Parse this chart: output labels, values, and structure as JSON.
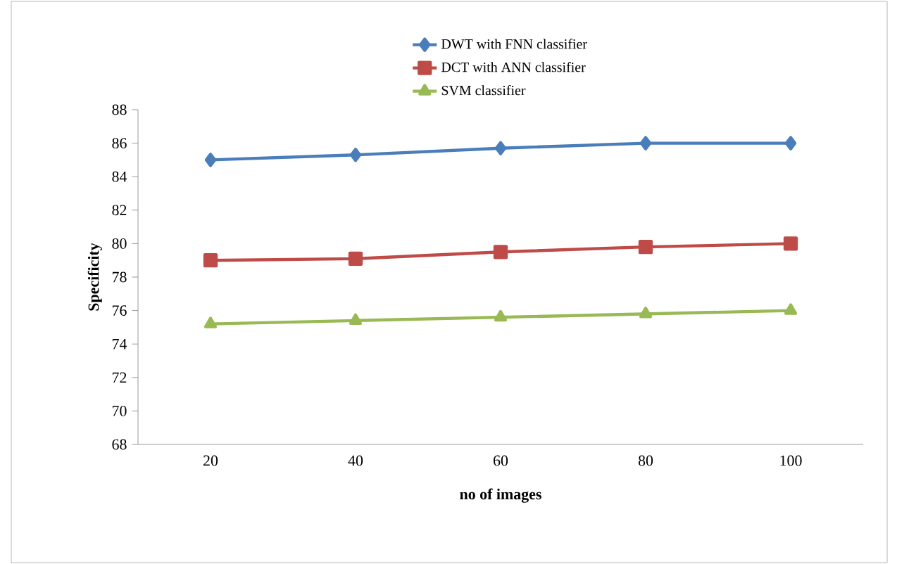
{
  "chart_data": {
    "type": "line",
    "xlabel": "no of images",
    "ylabel": "Specificity",
    "categories": [
      "20",
      "40",
      "60",
      "80",
      "100"
    ],
    "series": [
      {
        "name": "DWT with FNN classifier",
        "color": "#4a7ebb",
        "marker": "diamond",
        "values": [
          85,
          85.3,
          85.7,
          86,
          86
        ]
      },
      {
        "name": "DCT with ANN classifier",
        "color": "#be4b48",
        "marker": "square",
        "values": [
          79,
          79.1,
          79.5,
          79.8,
          80
        ]
      },
      {
        "name": "SVM classifier",
        "color": "#98b954",
        "marker": "triangle",
        "values": [
          75.2,
          75.4,
          75.6,
          75.8,
          76
        ]
      }
    ],
    "ylim": [
      68,
      88
    ],
    "yticks": [
      68,
      70,
      72,
      74,
      76,
      78,
      80,
      82,
      84,
      86,
      88
    ],
    "grid": false,
    "legend": "top",
    "line_style": "solid"
  }
}
